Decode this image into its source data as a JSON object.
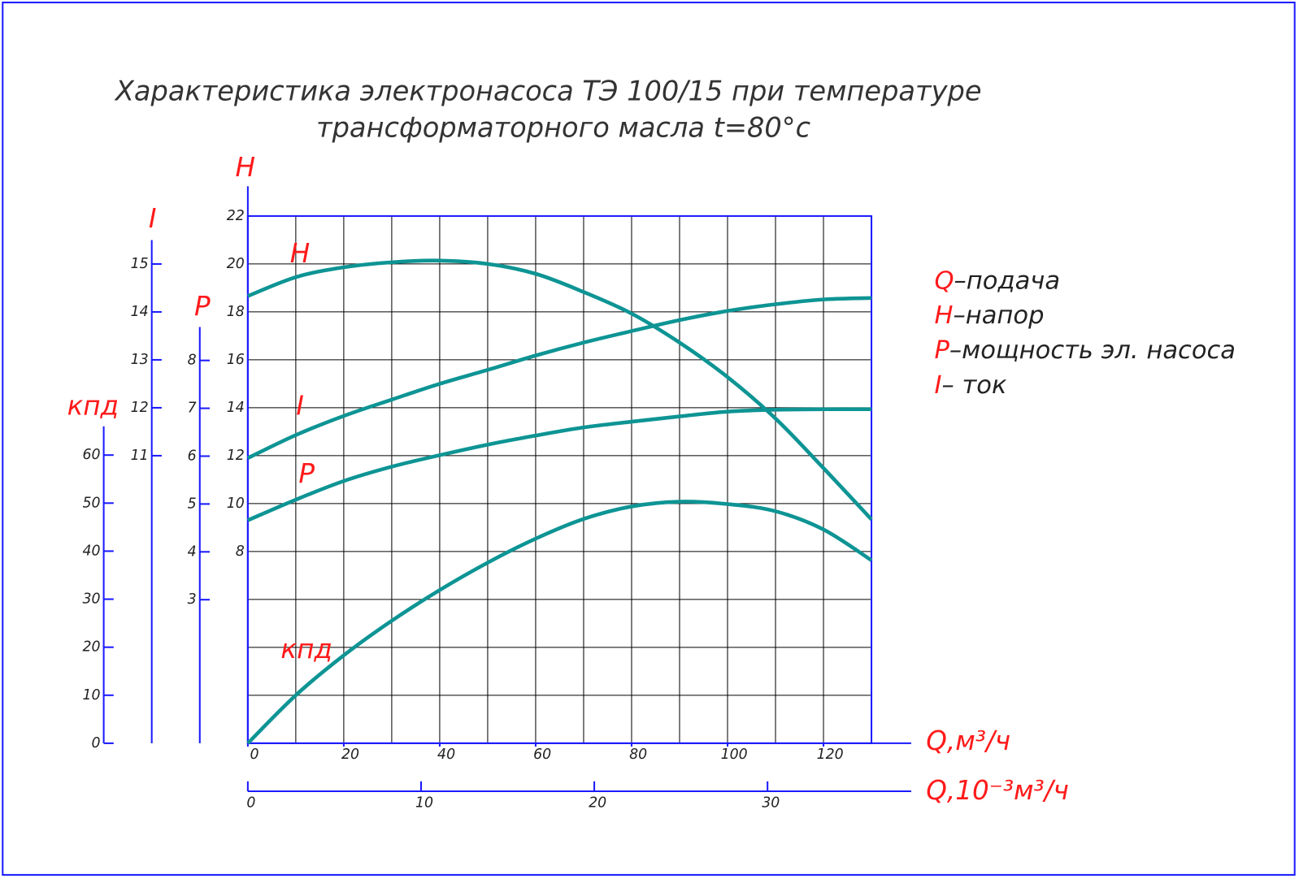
{
  "chart_data": {
    "type": "line",
    "title": [
      "Характеристика электронасоса ТЭ 100/15 при температуре",
      "трансформаторного масла t=80°c"
    ],
    "xlabel": "Q,м³/ч",
    "x2label": "Q,10⁻³м³/ч",
    "xlim": [
      0,
      130
    ],
    "xticks": [
      0,
      20,
      40,
      60,
      80,
      100,
      120
    ],
    "grid_xticks": [
      0,
      10,
      20,
      30,
      40,
      50,
      60,
      70,
      80,
      90,
      100,
      110,
      120,
      130
    ],
    "x2lim": [
      0,
      36
    ],
    "x2ticks": [
      0,
      10,
      20,
      30
    ],
    "grid_yticks": [
      0,
      2,
      4,
      6,
      8,
      10,
      12,
      14,
      16,
      18,
      20,
      22
    ],
    "grid": true,
    "y_axes": [
      {
        "label": "кпд",
        "ylim": [
          0,
          66
        ],
        "yticks": [
          0,
          10,
          20,
          30,
          40,
          50,
          60
        ]
      },
      {
        "label": "I",
        "ylim": [
          5,
          15.5
        ],
        "yticks": [
          11,
          12,
          13,
          14,
          15
        ]
      },
      {
        "label": "P",
        "ylim": [
          0,
          8.7
        ],
        "yticks": [
          3,
          4,
          5,
          6,
          7,
          8
        ]
      },
      {
        "label": "H",
        "ylim": [
          0,
          22
        ],
        "yticks": [
          8,
          10,
          12,
          14,
          16,
          18,
          20,
          22
        ]
      }
    ],
    "x": [
      0,
      10,
      20,
      30,
      40,
      50,
      60,
      70,
      80,
      90,
      100,
      110,
      120,
      130
    ],
    "series": [
      {
        "name": "H",
        "axis": 3,
        "color": "#0e9494",
        "values": [
          18.66,
          19.45,
          19.86,
          20.07,
          20.14,
          20.0,
          19.59,
          18.83,
          17.93,
          16.72,
          15.28,
          13.55,
          11.48,
          9.34
        ]
      },
      {
        "name": "I",
        "axis": 1,
        "color": "#0e9494",
        "values": [
          10.95,
          11.43,
          11.83,
          12.17,
          12.5,
          12.79,
          13.09,
          13.36,
          13.6,
          13.83,
          14.02,
          14.16,
          14.26,
          14.29
        ]
      },
      {
        "name": "P",
        "axis": 2,
        "color": "#0e9494",
        "values": [
          4.66,
          5.09,
          5.48,
          5.78,
          6.02,
          6.24,
          6.43,
          6.6,
          6.72,
          6.83,
          6.93,
          6.97,
          6.98,
          6.98
        ]
      },
      {
        "name": "кпд",
        "axis": 0,
        "color": "#0e9494",
        "values": [
          0,
          10,
          18.3,
          25.5,
          31.9,
          37.6,
          42.6,
          46.7,
          49.3,
          50.3,
          49.8,
          48.3,
          44.5,
          38.1
        ]
      }
    ],
    "legend": [
      {
        "symbol": "Q",
        "text": "–подача"
      },
      {
        "symbol": "H",
        "text": "–напор"
      },
      {
        "symbol": "P",
        "text": "–мощность эл. насоса"
      },
      {
        "symbol": "I",
        "text": "– ток"
      }
    ]
  }
}
